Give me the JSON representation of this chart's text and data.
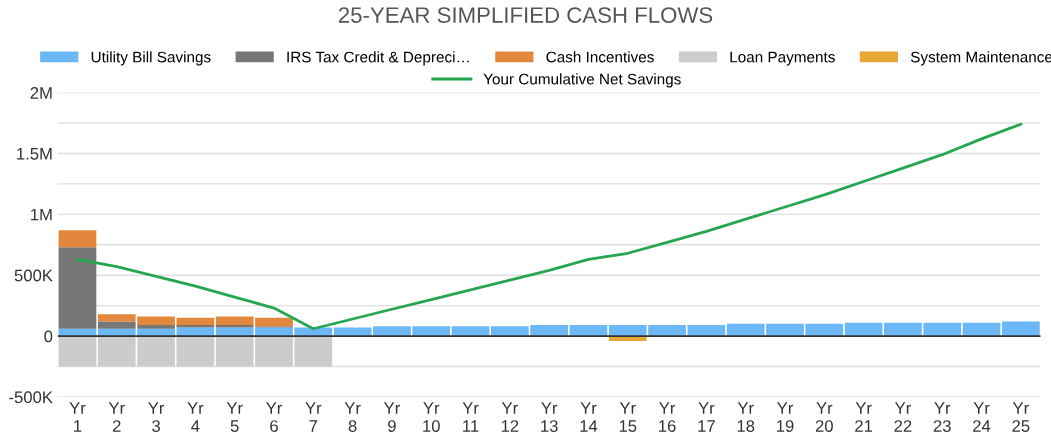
{
  "chart_data": {
    "type": "bar",
    "stacked": true,
    "title": "25-YEAR SIMPLIFIED CASH FLOWS",
    "categories": [
      "Yr\n1",
      "Yr\n2",
      "Yr\n3",
      "Yr\n4",
      "Yr\n5",
      "Yr\n6",
      "Yr\n7",
      "Yr\n8",
      "Yr\n9",
      "Yr\n10",
      "Yr\n11",
      "Yr\n12",
      "Yr\n13",
      "Yr\n14",
      "Yr\n15",
      "Yr\n16",
      "Yr\n17",
      "Yr\n18",
      "Yr\n19",
      "Yr\n20",
      "Yr\n21",
      "Yr\n22",
      "Yr\n23",
      "Yr\n24",
      "Yr\n25"
    ],
    "series": [
      {
        "name": "Utility Bill Savings",
        "color": "#6cb8f7",
        "values": [
          60000,
          60000,
          60000,
          70000,
          70000,
          70000,
          70000,
          70000,
          80000,
          80000,
          80000,
          80000,
          90000,
          90000,
          90000,
          90000,
          90000,
          100000,
          100000,
          100000,
          110000,
          110000,
          110000,
          110000,
          120000
        ]
      },
      {
        "name": "IRS Tax Credit & Depreci…",
        "color": "#777777",
        "values": [
          670000,
          60000,
          30000,
          20000,
          20000,
          10000,
          0,
          0,
          0,
          0,
          0,
          0,
          0,
          0,
          0,
          0,
          0,
          0,
          0,
          0,
          0,
          0,
          0,
          0,
          0
        ]
      },
      {
        "name": "Cash Incentives",
        "color": "#e2873c",
        "values": [
          140000,
          60000,
          70000,
          60000,
          70000,
          70000,
          0,
          0,
          0,
          0,
          0,
          0,
          0,
          0,
          0,
          0,
          0,
          0,
          0,
          0,
          0,
          0,
          0,
          0,
          0
        ]
      },
      {
        "name": "Loan Payments",
        "color": "#cccccc",
        "values": [
          -250000,
          -250000,
          -250000,
          -250000,
          -250000,
          -250000,
          -250000,
          0,
          0,
          0,
          0,
          0,
          0,
          0,
          0,
          0,
          0,
          0,
          0,
          0,
          0,
          0,
          0,
          0,
          0
        ]
      },
      {
        "name": "System Maintenance",
        "color": "#e8a838",
        "values": [
          0,
          0,
          0,
          0,
          0,
          0,
          0,
          0,
          0,
          0,
          0,
          0,
          0,
          0,
          -40000,
          0,
          0,
          0,
          0,
          0,
          0,
          0,
          0,
          0,
          0
        ]
      },
      {
        "name": "Your Cumulative Net Savings",
        "type": "line",
        "color": "#27a651",
        "values": [
          630000,
          570000,
          490000,
          410000,
          320000,
          230000,
          60000,
          140000,
          220000,
          300000,
          380000,
          460000,
          540000,
          630000,
          680000,
          770000,
          860000,
          960000,
          1060000,
          1160000,
          1270000,
          1380000,
          1490000,
          1620000,
          1740000
        ]
      }
    ],
    "ylim": [
      -500000,
      2000000
    ],
    "yticks": [
      {
        "value": -500000,
        "label": "-500K"
      },
      {
        "value": -250000,
        "label": null
      },
      {
        "value": 0,
        "label": "0"
      },
      {
        "value": 250000,
        "label": null
      },
      {
        "value": 500000,
        "label": "500K"
      },
      {
        "value": 750000,
        "label": null
      },
      {
        "value": 1000000,
        "label": "1M"
      },
      {
        "value": 1250000,
        "label": null
      },
      {
        "value": 1500000,
        "label": "1.5M"
      },
      {
        "value": 1750000,
        "label": null
      },
      {
        "value": 2000000,
        "label": "2M"
      }
    ],
    "grid": "y",
    "legend": "top",
    "marker": "none",
    "line_style": "solid"
  }
}
